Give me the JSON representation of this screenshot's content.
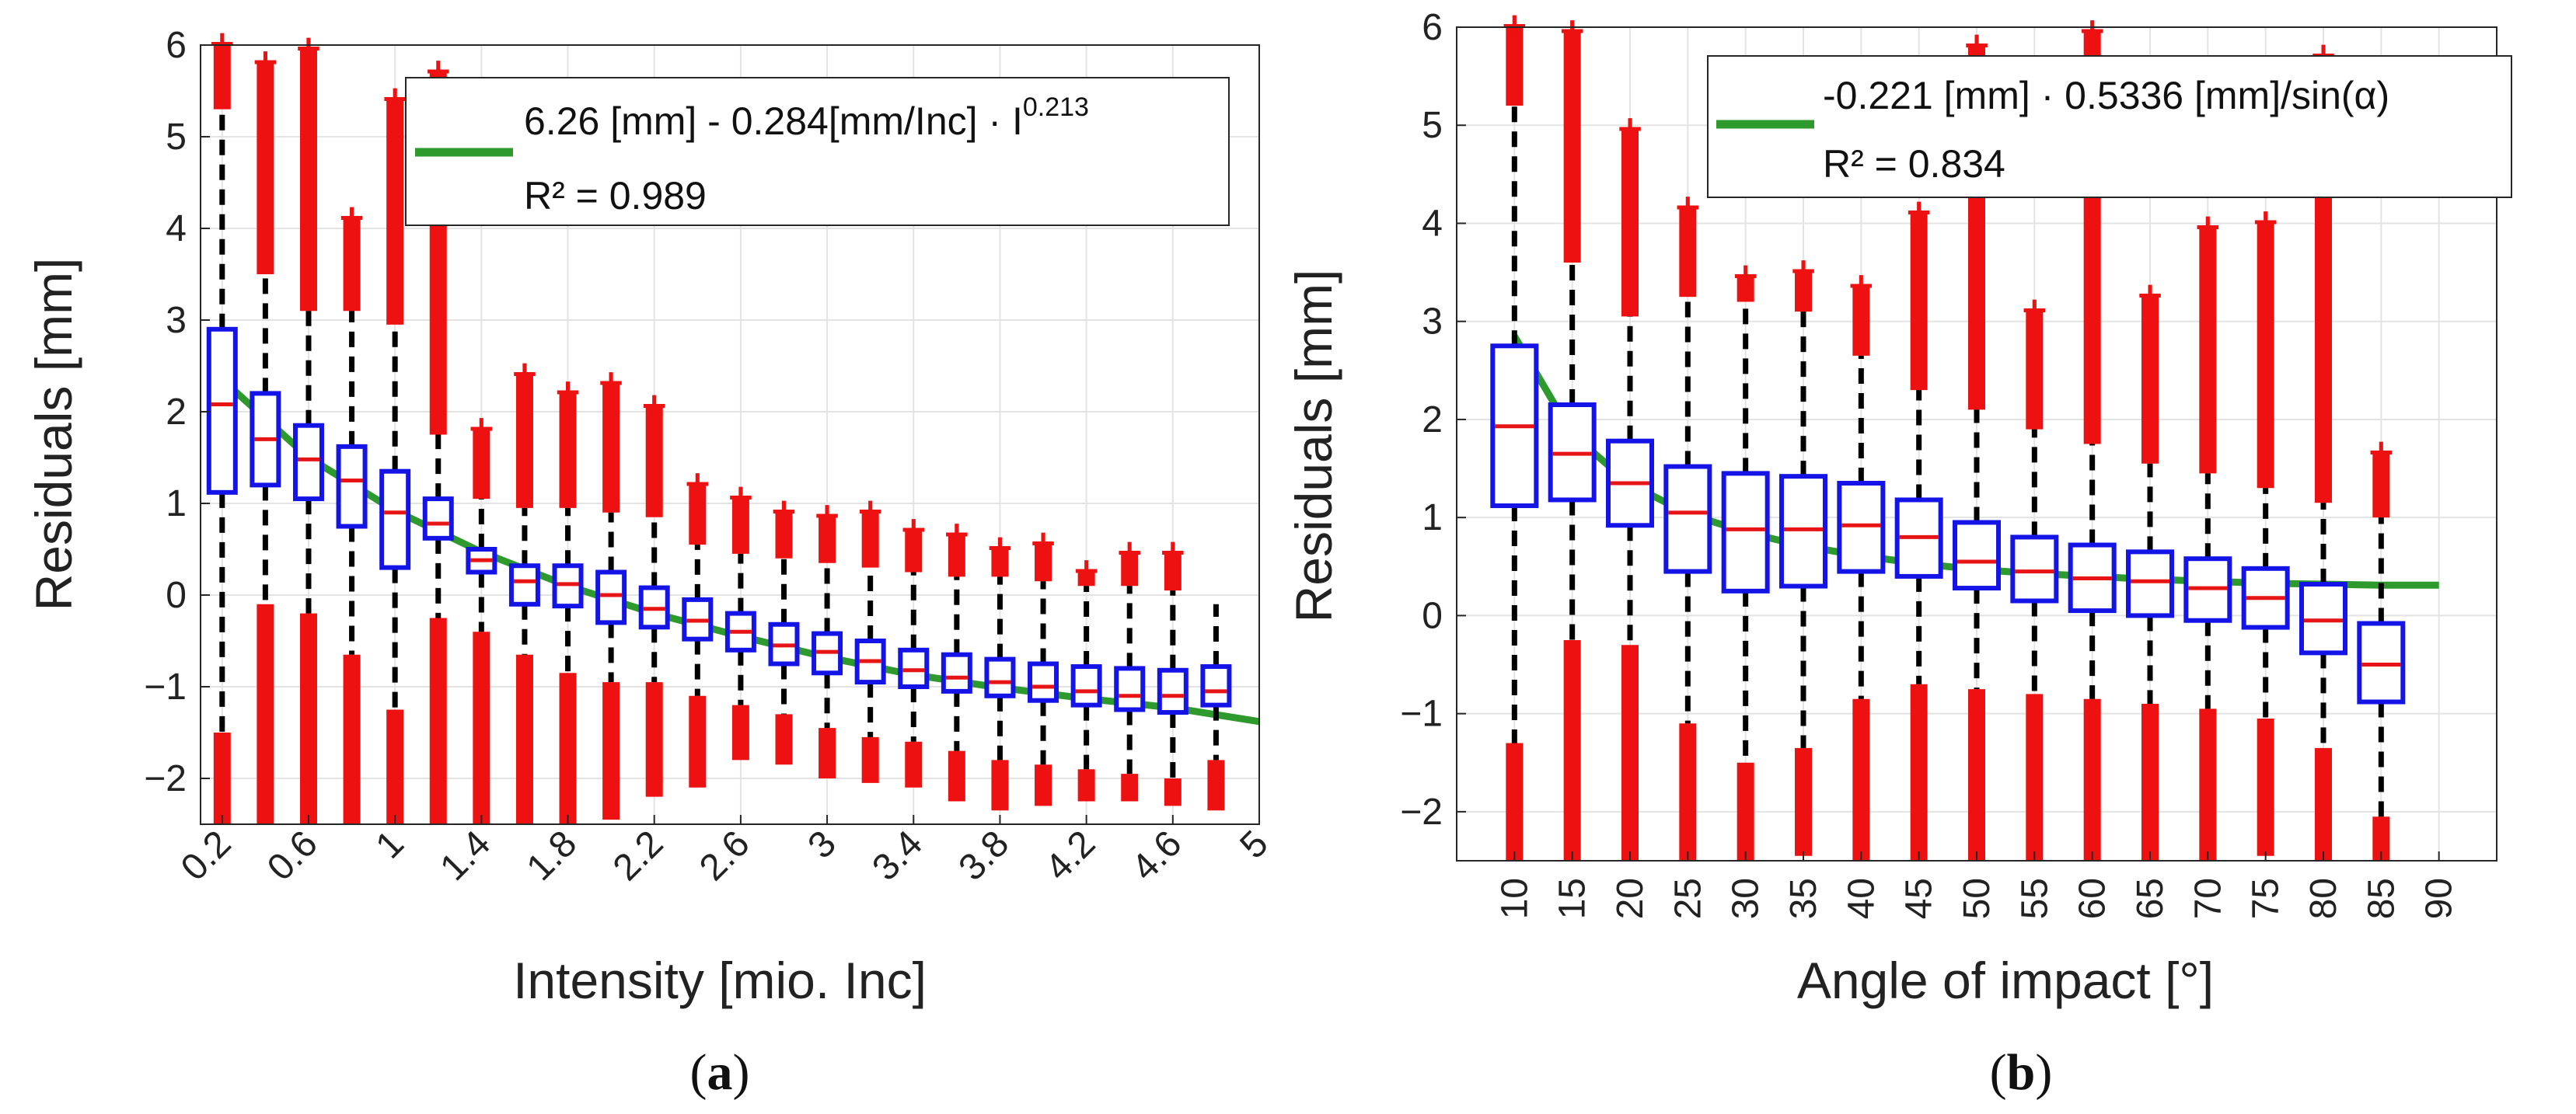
{
  "chart_data": [
    {
      "id": "a",
      "type": "box",
      "subfigure_label": "a",
      "xlabel": "Intensity [mio. Inc]",
      "ylabel": "Residuals [mm]",
      "xlim": [
        0.1,
        5.0
      ],
      "ylim": [
        -2.5,
        6
      ],
      "xticks": [
        0.2,
        0.6,
        1,
        1.4,
        1.8,
        2.2,
        2.6,
        3,
        3.4,
        3.8,
        4.2,
        4.6,
        5
      ],
      "xtick_labels": [
        "0.2",
        "0.6",
        "1",
        "1.4",
        "1.8",
        "2.2",
        "2.6",
        "3",
        "3.4",
        "3.8",
        "4.2",
        "4.6",
        "5"
      ],
      "yticks": [
        -2,
        -1,
        0,
        1,
        2,
        3,
        4,
        5,
        6
      ],
      "ytick_labels": [
        "−2",
        "−1",
        "0",
        "1",
        "2",
        "3",
        "4",
        "5",
        "6"
      ],
      "grid": true,
      "legend": {
        "location": "top-right",
        "line1": "6.26 [mm] - 0.284[mm/Inc] · I",
        "exponent": "0.213",
        "line2": "R² = 0.989"
      },
      "fit_color": "#2e9a2e",
      "box_color": "#1414e6",
      "median_color": "#e61414",
      "outlier_color": "#ee1111",
      "fit_curve": {
        "x": [
          0.2,
          0.6,
          1,
          1.4,
          1.8,
          2.2,
          2.6,
          3,
          3.4,
          3.8,
          4.2,
          4.6,
          5
        ],
        "y": [
          2.35,
          1.5,
          0.92,
          0.47,
          0.1,
          -0.2,
          -0.45,
          -0.68,
          -0.87,
          -1.01,
          -1.13,
          -1.23,
          -1.38
        ]
      },
      "boxes": [
        {
          "x": 0.2,
          "q1": 1.12,
          "median": 2.08,
          "q3": 2.9,
          "whisker_low": -1.5,
          "whisker_high": 5.3,
          "out_high": [
            5.3,
            6.0
          ],
          "out_low": [
            -1.5,
            -2.5
          ]
        },
        {
          "x": 0.4,
          "q1": 1.2,
          "median": 1.7,
          "q3": 2.2,
          "whisker_low": -0.1,
          "whisker_high": 3.5,
          "out_high": [
            3.5,
            5.8
          ],
          "out_low": [
            -0.1,
            -2.5
          ]
        },
        {
          "x": 0.6,
          "q1": 1.05,
          "median": 1.48,
          "q3": 1.85,
          "whisker_low": -0.2,
          "whisker_high": 3.1,
          "out_high": [
            3.1,
            5.95
          ],
          "out_low": [
            -0.2,
            -2.5
          ]
        },
        {
          "x": 0.8,
          "q1": 0.75,
          "median": 1.25,
          "q3": 1.62,
          "whisker_low": -0.65,
          "whisker_high": 3.1,
          "out_high": [
            3.1,
            4.1
          ],
          "out_low": [
            -0.65,
            -2.5
          ]
        },
        {
          "x": 1.0,
          "q1": 0.3,
          "median": 0.9,
          "q3": 1.35,
          "whisker_low": -1.25,
          "whisker_high": 2.95,
          "out_high": [
            2.95,
            5.4
          ],
          "out_low": [
            -1.25,
            -2.5
          ]
        },
        {
          "x": 1.2,
          "q1": 0.62,
          "median": 0.78,
          "q3": 1.05,
          "whisker_low": -0.25,
          "whisker_high": 1.75,
          "out_high": [
            1.75,
            5.7
          ],
          "out_low": [
            -0.25,
            -2.5
          ]
        },
        {
          "x": 1.4,
          "q1": 0.25,
          "median": 0.38,
          "q3": 0.5,
          "whisker_low": -0.4,
          "whisker_high": 1.05,
          "out_high": [
            1.05,
            1.8
          ],
          "out_low": [
            -0.4,
            -2.5
          ]
        },
        {
          "x": 1.6,
          "q1": -0.1,
          "median": 0.15,
          "q3": 0.32,
          "whisker_low": -0.65,
          "whisker_high": 0.95,
          "out_high": [
            0.95,
            2.4
          ],
          "out_low": [
            -0.65,
            -2.5
          ]
        },
        {
          "x": 1.8,
          "q1": -0.12,
          "median": 0.12,
          "q3": 0.32,
          "whisker_low": -0.85,
          "whisker_high": 0.95,
          "out_high": [
            0.95,
            2.2
          ],
          "out_low": [
            -0.85,
            -2.5
          ]
        },
        {
          "x": 2.0,
          "q1": -0.3,
          "median": 0.0,
          "q3": 0.25,
          "whisker_low": -0.95,
          "whisker_high": 0.9,
          "out_high": [
            0.9,
            2.3
          ],
          "out_low": [
            -0.95,
            -2.45
          ]
        },
        {
          "x": 2.2,
          "q1": -0.35,
          "median": -0.15,
          "q3": 0.08,
          "whisker_low": -0.95,
          "whisker_high": 0.85,
          "out_high": [
            0.85,
            2.05
          ],
          "out_low": [
            -0.95,
            -2.2
          ]
        },
        {
          "x": 2.4,
          "q1": -0.48,
          "median": -0.28,
          "q3": -0.05,
          "whisker_low": -1.1,
          "whisker_high": 0.55,
          "out_high": [
            0.55,
            1.2
          ],
          "out_low": [
            -1.1,
            -2.1
          ]
        },
        {
          "x": 2.6,
          "q1": -0.6,
          "median": -0.4,
          "q3": -0.2,
          "whisker_low": -1.2,
          "whisker_high": 0.45,
          "out_high": [
            0.45,
            1.05
          ],
          "out_low": [
            -1.2,
            -1.8
          ]
        },
        {
          "x": 2.8,
          "q1": -0.75,
          "median": -0.55,
          "q3": -0.32,
          "whisker_low": -1.3,
          "whisker_high": 0.4,
          "out_high": [
            0.4,
            0.9
          ],
          "out_low": [
            -1.3,
            -1.85
          ]
        },
        {
          "x": 3.0,
          "q1": -0.85,
          "median": -0.62,
          "q3": -0.42,
          "whisker_low": -1.45,
          "whisker_high": 0.35,
          "out_high": [
            0.35,
            0.85
          ],
          "out_low": [
            -1.45,
            -2.0
          ]
        },
        {
          "x": 3.2,
          "q1": -0.95,
          "median": -0.72,
          "q3": -0.5,
          "whisker_low": -1.55,
          "whisker_high": 0.3,
          "out_high": [
            0.3,
            0.9
          ],
          "out_low": [
            -1.55,
            -2.05
          ]
        },
        {
          "x": 3.4,
          "q1": -1.0,
          "median": -0.82,
          "q3": -0.6,
          "whisker_low": -1.6,
          "whisker_high": 0.25,
          "out_high": [
            0.25,
            0.7
          ],
          "out_low": [
            -1.6,
            -2.1
          ]
        },
        {
          "x": 3.6,
          "q1": -1.05,
          "median": -0.9,
          "q3": -0.65,
          "whisker_low": -1.7,
          "whisker_high": 0.2,
          "out_high": [
            0.2,
            0.65
          ],
          "out_low": [
            -1.7,
            -2.25
          ]
        },
        {
          "x": 3.8,
          "q1": -1.1,
          "median": -0.95,
          "q3": -0.7,
          "whisker_low": -1.8,
          "whisker_high": 0.2,
          "out_high": [
            0.2,
            0.5
          ],
          "out_low": [
            -1.8,
            -2.35
          ]
        },
        {
          "x": 4.0,
          "q1": -1.15,
          "median": -1.0,
          "q3": -0.75,
          "whisker_low": -1.85,
          "whisker_high": 0.15,
          "out_high": [
            0.15,
            0.55
          ],
          "out_low": [
            -1.85,
            -2.3
          ]
        },
        {
          "x": 4.2,
          "q1": -1.2,
          "median": -1.05,
          "q3": -0.78,
          "whisker_low": -1.9,
          "whisker_high": 0.1,
          "out_high": [
            0.1,
            0.25
          ],
          "out_low": [
            -1.9,
            -2.25
          ]
        },
        {
          "x": 4.4,
          "q1": -1.25,
          "median": -1.1,
          "q3": -0.8,
          "whisker_low": -1.95,
          "whisker_high": 0.1,
          "out_high": [
            0.1,
            0.45
          ],
          "out_low": [
            -1.95,
            -2.25
          ]
        },
        {
          "x": 4.6,
          "q1": -1.28,
          "median": -1.1,
          "q3": -0.82,
          "whisker_low": -2.0,
          "whisker_high": 0.05,
          "out_high": [
            0.05,
            0.45
          ],
          "out_low": [
            -2.0,
            -2.3
          ]
        },
        {
          "x": 4.8,
          "q1": -1.2,
          "median": -1.05,
          "q3": -0.78,
          "whisker_low": -1.8,
          "whisker_high": -0.1,
          "out_high": [],
          "out_low": [
            -1.8,
            -2.35
          ]
        }
      ]
    },
    {
      "id": "b",
      "type": "box",
      "subfigure_label": "b",
      "xlabel": "Angle of impact [°]",
      "ylabel": "Residuals [mm]",
      "xlim": [
        5,
        95
      ],
      "ylim": [
        -2.5,
        6
      ],
      "xticks": [
        10,
        15,
        20,
        25,
        30,
        35,
        40,
        45,
        50,
        55,
        60,
        65,
        70,
        75,
        80,
        85,
        90
      ],
      "xtick_labels": [
        "10",
        "15",
        "20",
        "25",
        "30",
        "35",
        "40",
        "45",
        "50",
        "55",
        "60",
        "65",
        "70",
        "75",
        "80",
        "85",
        "90"
      ],
      "yticks": [
        -2,
        -1,
        0,
        1,
        2,
        3,
        4,
        5,
        6
      ],
      "ytick_labels": [
        "−2",
        "−1",
        "0",
        "1",
        "2",
        "3",
        "4",
        "5",
        "6"
      ],
      "grid": true,
      "legend": {
        "location": "top-right",
        "line1": "-0.221 [mm] · 0.5336 [mm]/sin(α)",
        "line2": "R² = 0.834"
      },
      "fit_color": "#2e9a2e",
      "box_color": "#1414e6",
      "median_color": "#e61414",
      "outlier_color": "#ee1111",
      "fit_curve": {
        "x": [
          10,
          15,
          20,
          25,
          30,
          35,
          40,
          45,
          50,
          55,
          60,
          65,
          70,
          75,
          80,
          85,
          90
        ],
        "y": [
          2.85,
          1.85,
          1.34,
          1.04,
          0.85,
          0.71,
          0.61,
          0.53,
          0.47,
          0.43,
          0.4,
          0.37,
          0.35,
          0.33,
          0.32,
          0.31,
          0.31
        ]
      },
      "boxes": [
        {
          "x": 10,
          "q1": 1.12,
          "median": 1.93,
          "q3": 2.75,
          "whisker_low": -1.3,
          "whisker_high": 5.2,
          "out_high": [
            5.2,
            6.0
          ],
          "out_low": [
            -1.3,
            -2.5
          ]
        },
        {
          "x": 15,
          "q1": 1.18,
          "median": 1.65,
          "q3": 2.15,
          "whisker_low": -0.25,
          "whisker_high": 3.6,
          "out_high": [
            3.6,
            5.95
          ],
          "out_low": [
            -0.25,
            -2.5
          ]
        },
        {
          "x": 20,
          "q1": 0.92,
          "median": 1.35,
          "q3": 1.78,
          "whisker_low": -0.3,
          "whisker_high": 3.05,
          "out_high": [
            3.05,
            4.95
          ],
          "out_low": [
            -0.3,
            -2.5
          ]
        },
        {
          "x": 25,
          "q1": 0.45,
          "median": 1.05,
          "q3": 1.52,
          "whisker_low": -1.1,
          "whisker_high": 3.25,
          "out_high": [
            3.25,
            4.15
          ],
          "out_low": [
            -1.1,
            -2.5
          ]
        },
        {
          "x": 30,
          "q1": 0.25,
          "median": 0.88,
          "q3": 1.45,
          "whisker_low": -1.5,
          "whisker_high": 3.2,
          "out_high": [
            3.2,
            3.45
          ],
          "out_low": [
            -1.5,
            -2.5
          ]
        },
        {
          "x": 35,
          "q1": 0.3,
          "median": 0.88,
          "q3": 1.42,
          "whisker_low": -1.35,
          "whisker_high": 3.1,
          "out_high": [
            3.1,
            3.5
          ],
          "out_low": [
            -1.35,
            -2.45
          ]
        },
        {
          "x": 40,
          "q1": 0.45,
          "median": 0.92,
          "q3": 1.35,
          "whisker_low": -0.85,
          "whisker_high": 2.65,
          "out_high": [
            2.65,
            3.35
          ],
          "out_low": [
            -0.85,
            -2.5
          ]
        },
        {
          "x": 45,
          "q1": 0.4,
          "median": 0.8,
          "q3": 1.18,
          "whisker_low": -0.7,
          "whisker_high": 2.3,
          "out_high": [
            2.3,
            4.1
          ],
          "out_low": [
            -0.7,
            -2.5
          ]
        },
        {
          "x": 50,
          "q1": 0.28,
          "median": 0.55,
          "q3": 0.95,
          "whisker_low": -0.75,
          "whisker_high": 2.1,
          "out_high": [
            2.1,
            5.8
          ],
          "out_low": [
            -0.75,
            -2.5
          ]
        },
        {
          "x": 55,
          "q1": 0.15,
          "median": 0.45,
          "q3": 0.8,
          "whisker_low": -0.8,
          "whisker_high": 1.9,
          "out_high": [
            1.9,
            3.1
          ],
          "out_low": [
            -0.8,
            -2.5
          ]
        },
        {
          "x": 60,
          "q1": 0.05,
          "median": 0.38,
          "q3": 0.72,
          "whisker_low": -0.85,
          "whisker_high": 1.75,
          "out_high": [
            1.75,
            5.95
          ],
          "out_low": [
            -0.85,
            -2.5
          ]
        },
        {
          "x": 65,
          "q1": 0.0,
          "median": 0.35,
          "q3": 0.65,
          "whisker_low": -0.9,
          "whisker_high": 1.55,
          "out_high": [
            1.55,
            3.25
          ],
          "out_low": [
            -0.9,
            -2.5
          ]
        },
        {
          "x": 70,
          "q1": -0.05,
          "median": 0.28,
          "q3": 0.58,
          "whisker_low": -0.95,
          "whisker_high": 1.45,
          "out_high": [
            1.45,
            3.95
          ],
          "out_low": [
            -0.95,
            -2.5
          ]
        },
        {
          "x": 75,
          "q1": -0.12,
          "median": 0.18,
          "q3": 0.48,
          "whisker_low": -1.05,
          "whisker_high": 1.3,
          "out_high": [
            1.3,
            4.0
          ],
          "out_low": [
            -1.05,
            -2.45
          ]
        },
        {
          "x": 80,
          "q1": -0.38,
          "median": -0.05,
          "q3": 0.32,
          "whisker_low": -1.35,
          "whisker_high": 1.15,
          "out_high": [
            1.15,
            5.7
          ],
          "out_low": [
            -1.35,
            -2.5
          ]
        },
        {
          "x": 85,
          "q1": -0.88,
          "median": -0.5,
          "q3": -0.08,
          "whisker_low": -2.05,
          "whisker_high": 1.0,
          "out_high": [
            1.0,
            1.65
          ],
          "out_low": [
            -2.05,
            -2.5
          ]
        }
      ]
    }
  ]
}
